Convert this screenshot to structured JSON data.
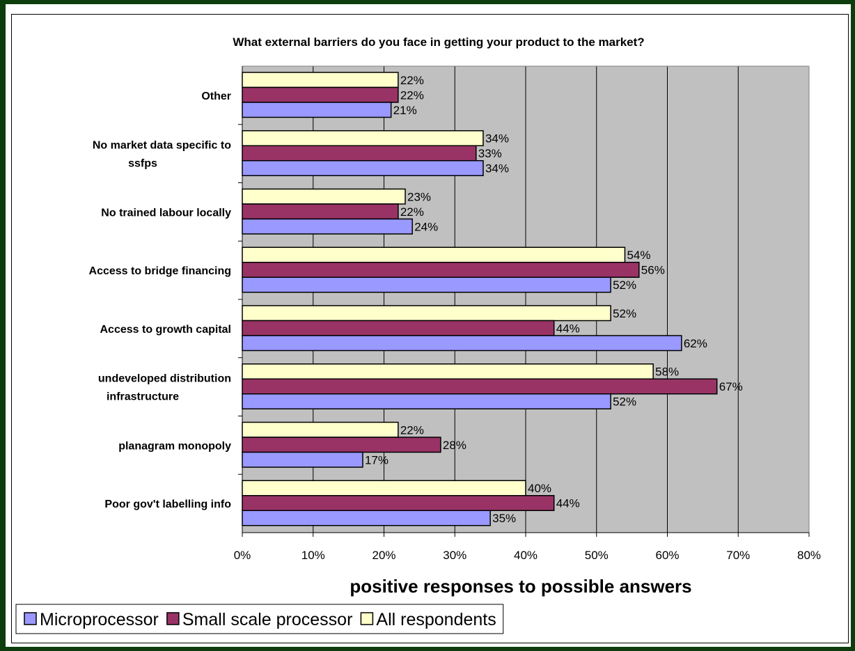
{
  "chart_data": {
    "type": "bar",
    "orientation": "horizontal",
    "title": "What external barriers do you face in getting your product to the market?",
    "xlabel": "positive responses to possible answers",
    "ylabel": "",
    "xlim": [
      0,
      80
    ],
    "x_ticks": [
      "0%",
      "10%",
      "20%",
      "30%",
      "40%",
      "50%",
      "60%",
      "70%",
      "80%"
    ],
    "grid": true,
    "legend_position": "bottom-left",
    "categories": [
      [
        "Other"
      ],
      [
        "No market data specific to",
        "ssfps"
      ],
      [
        "No trained labour locally"
      ],
      [
        "Access to bridge financing"
      ],
      [
        "Access to growth capital"
      ],
      [
        "undeveloped distribution",
        "infrastructure"
      ],
      [
        "planagram monopoly"
      ],
      [
        "Poor gov't labelling info"
      ]
    ],
    "series": [
      {
        "name": "All respondents",
        "color": "#ffffcc",
        "values": [
          22,
          34,
          23,
          54,
          52,
          58,
          22,
          40
        ]
      },
      {
        "name": "Small scale processor",
        "color": "#993366",
        "values": [
          22,
          33,
          22,
          56,
          44,
          67,
          28,
          44
        ]
      },
      {
        "name": "Microprocessor",
        "color": "#9999ff",
        "values": [
          21,
          34,
          24,
          52,
          62,
          52,
          17,
          35
        ]
      }
    ],
    "legend_order": [
      "Microprocessor",
      "Small scale processor",
      "All respondents"
    ],
    "plot_background": "#c0c0c0"
  }
}
